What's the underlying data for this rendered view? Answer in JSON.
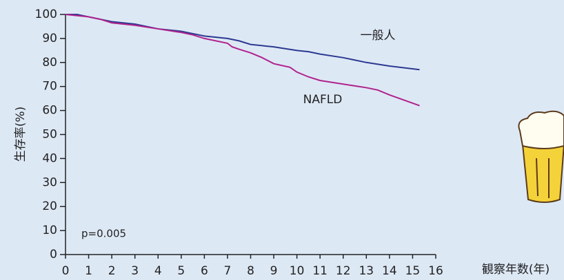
{
  "chart_data": {
    "type": "line",
    "x_label": "観察年数(年)",
    "y_label": "生存率(%)",
    "annotation": "p=0.005",
    "xlim": [
      0,
      16
    ],
    "xticks": [
      0,
      1,
      2,
      3,
      4,
      5,
      6,
      7,
      8,
      9,
      10,
      11,
      12,
      13,
      14,
      15,
      16
    ],
    "ylim": [
      0,
      100
    ],
    "yticks": [
      0,
      10,
      20,
      30,
      40,
      50,
      60,
      70,
      80,
      90,
      100
    ],
    "grid": false,
    "series": [
      {
        "name": "一般人",
        "color": "#2b3990",
        "x": [
          0,
          0.5,
          1,
          1.5,
          2,
          3,
          4,
          5,
          6,
          7,
          7.5,
          8,
          9,
          10,
          10.5,
          11,
          12,
          13,
          14,
          15.3
        ],
        "values": [
          100,
          100,
          99,
          98,
          97,
          96,
          94,
          93,
          91,
          90,
          89,
          87.5,
          86.5,
          85,
          84.5,
          83.5,
          82,
          80,
          78.5,
          77
        ]
      },
      {
        "name": "NAFLD",
        "color": "#b0228c",
        "x": [
          0,
          1,
          1.5,
          2,
          3,
          4,
          5,
          5.5,
          6,
          7,
          7.2,
          7.5,
          8,
          8.5,
          9,
          9.7,
          10,
          10.5,
          11,
          12,
          13,
          13.5,
          14,
          15.3
        ],
        "values": [
          100,
          99,
          98,
          96.5,
          95.5,
          94,
          92.5,
          91.5,
          90,
          88,
          86.5,
          85.5,
          84,
          82,
          79.5,
          78,
          76,
          74,
          72.5,
          71,
          69.5,
          68.5,
          66.5,
          62
        ]
      }
    ]
  }
}
